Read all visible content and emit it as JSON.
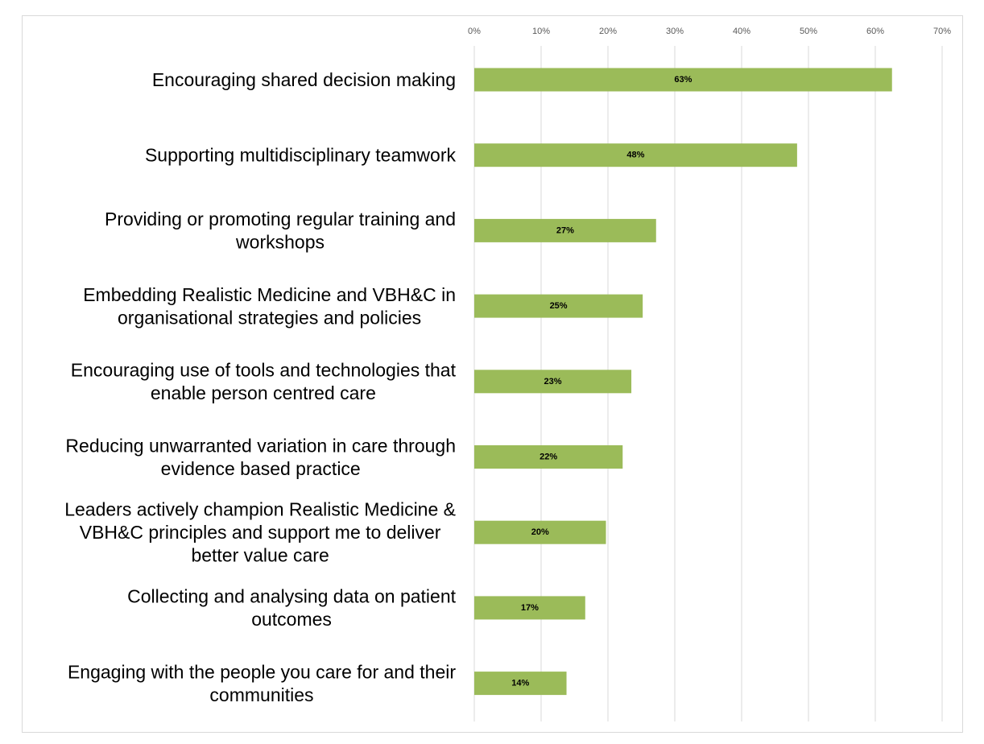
{
  "chart_data": {
    "type": "bar",
    "orientation": "horizontal",
    "categories": [
      [
        "Encouraging shared decision making"
      ],
      [
        "Supporting multidisciplinary teamwork"
      ],
      [
        "Providing or promoting regular training and",
        "workshops"
      ],
      [
        "Embedding Realistic Medicine and VBH&C in",
        "organisational strategies and policies"
      ],
      [
        "Encouraging use of tools and technologies that",
        "enable person centred care"
      ],
      [
        "Reducing unwarranted variation in care through",
        "evidence based practice"
      ],
      [
        "Leaders actively champion Realistic Medicine &",
        "VBH&C principles and support me to deliver",
        "better value care"
      ],
      [
        "Collecting and analysing data on patient",
        "outcomes"
      ],
      [
        "Engaging with the people you care for and their",
        "communities"
      ]
    ],
    "values": [
      62.5,
      48.3,
      27.2,
      25.2,
      23.5,
      22.2,
      19.7,
      16.6,
      13.8
    ],
    "data_labels": [
      "63%",
      "48%",
      "27%",
      "25%",
      "23%",
      "22%",
      "20%",
      "17%",
      "14%"
    ],
    "xlim": [
      0,
      70
    ],
    "x_ticks": [
      "0%",
      "10%",
      "20%",
      "30%",
      "40%",
      "50%",
      "60%",
      "70%"
    ],
    "x_axis_position": "top",
    "grid": true,
    "legend": "none",
    "title": "",
    "xlabel": "",
    "ylabel": "",
    "colors": {
      "bar": "#9bbb59",
      "gridline": "#d9d9d9",
      "tick_text": "#595959",
      "label_text": "#000000"
    }
  }
}
